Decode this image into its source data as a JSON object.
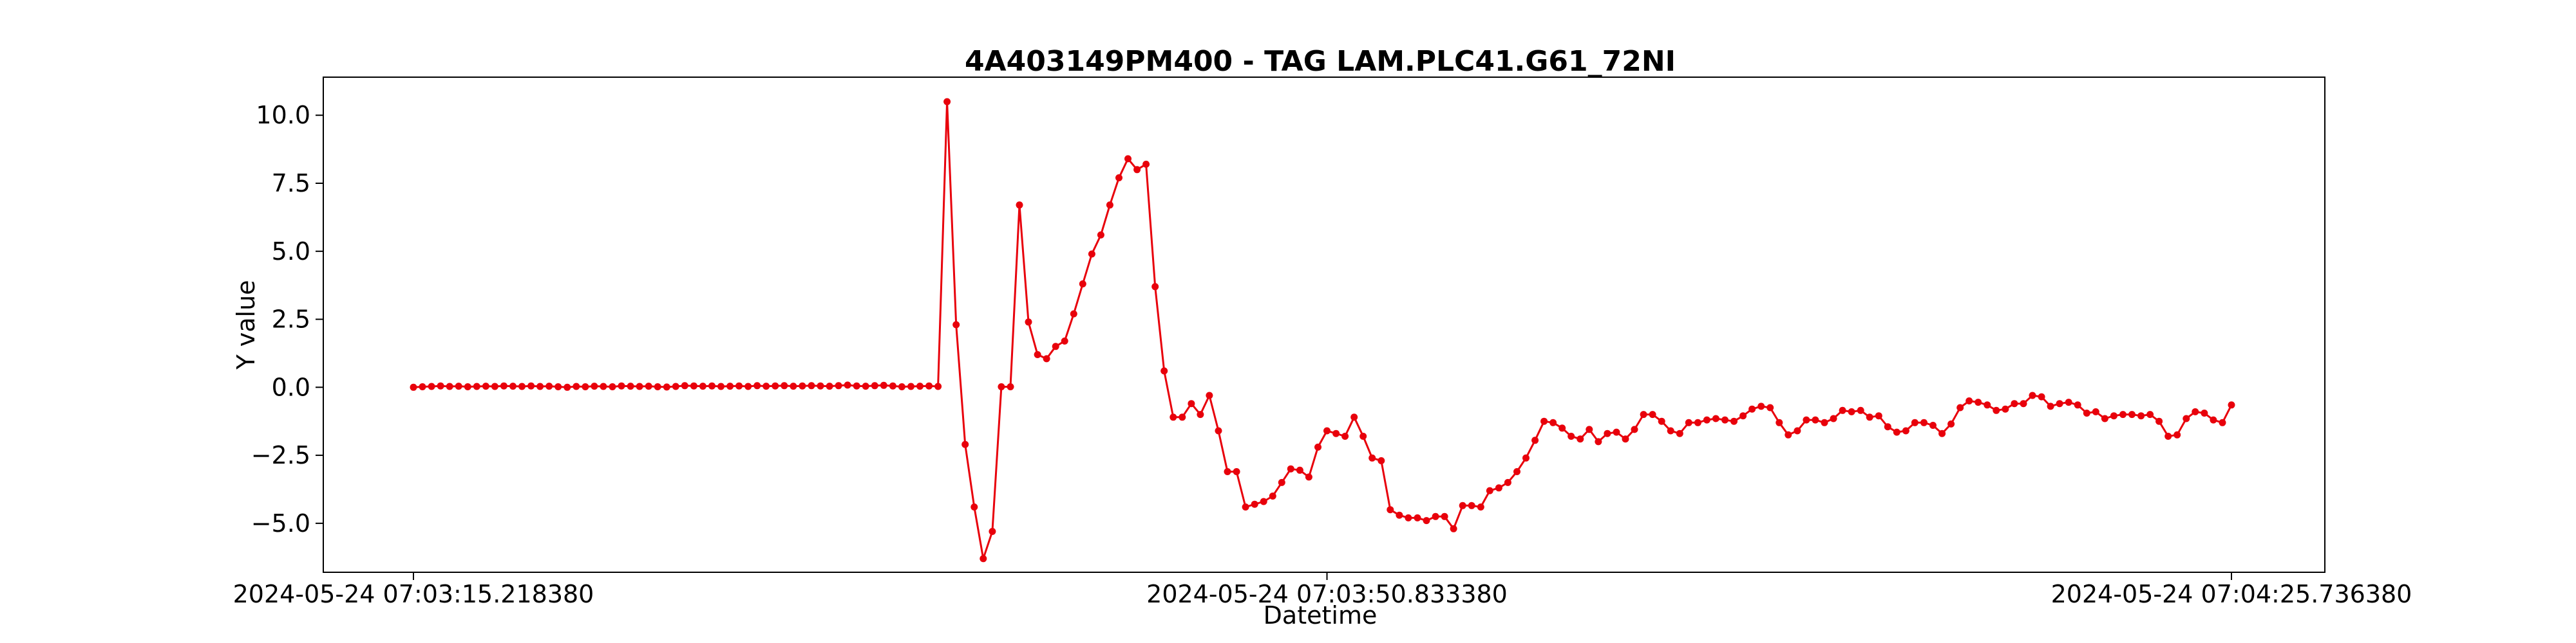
{
  "chart_data": {
    "type": "line",
    "title": "4A403149PM400 - TAG LAM.PLC41.G61_72NI",
    "xlabel": "Datetime",
    "ylabel": "Y value",
    "grid": false,
    "series_color": "#e8000b",
    "x_tick_labels": [
      "2024-05-24 07:03:15.218380",
      "2024-05-24 07:03:50.833380",
      "2024-05-24 07:04:25.736380"
    ],
    "y_ticks": [
      -5.0,
      -2.5,
      0.0,
      2.5,
      5.0,
      7.5,
      10.0
    ],
    "y_tick_labels": [
      "−5.0",
      "−2.5",
      "0.0",
      "2.5",
      "5.0",
      "7.5",
      "10.0"
    ],
    "ylim": [
      -6.8,
      11.4
    ],
    "y": [
      0.0,
      0.02,
      0.03,
      0.05,
      0.03,
      0.04,
      0.02,
      0.03,
      0.04,
      0.03,
      0.05,
      0.04,
      0.03,
      0.05,
      0.03,
      0.04,
      0.02,
      0.0,
      0.03,
      0.02,
      0.04,
      0.03,
      0.02,
      0.05,
      0.04,
      0.03,
      0.04,
      0.02,
      0.01,
      0.03,
      0.06,
      0.05,
      0.04,
      0.05,
      0.03,
      0.04,
      0.05,
      0.03,
      0.06,
      0.04,
      0.05,
      0.06,
      0.04,
      0.05,
      0.06,
      0.05,
      0.04,
      0.06,
      0.08,
      0.05,
      0.04,
      0.06,
      0.07,
      0.05,
      0.02,
      0.03,
      0.04,
      0.05,
      0.03,
      10.5,
      2.3,
      -2.1,
      -4.4,
      -6.3,
      -5.3,
      0.02,
      0.02,
      6.7,
      2.4,
      1.2,
      1.05,
      1.5,
      1.7,
      2.7,
      3.8,
      4.9,
      5.6,
      6.7,
      7.7,
      8.4,
      8.0,
      8.2,
      3.7,
      0.6,
      -1.1,
      -1.1,
      -0.6,
      -1.0,
      -0.3,
      -1.6,
      -3.1,
      -3.1,
      -4.4,
      -4.3,
      -4.2,
      -4.0,
      -3.5,
      -3.0,
      -3.05,
      -3.3,
      -2.2,
      -1.6,
      -1.7,
      -1.8,
      -1.1,
      -1.8,
      -2.6,
      -2.7,
      -4.5,
      -4.7,
      -4.8,
      -4.8,
      -4.9,
      -4.75,
      -4.75,
      -5.2,
      -4.35,
      -4.35,
      -4.4,
      -3.8,
      -3.7,
      -3.5,
      -3.1,
      -2.6,
      -1.95,
      -1.25,
      -1.3,
      -1.5,
      -1.8,
      -1.9,
      -1.55,
      -2.0,
      -1.7,
      -1.65,
      -1.9,
      -1.55,
      -1.0,
      -1.0,
      -1.25,
      -1.6,
      -1.7,
      -1.3,
      -1.3,
      -1.2,
      -1.15,
      -1.2,
      -1.25,
      -1.05,
      -0.8,
      -0.7,
      -0.75,
      -1.3,
      -1.75,
      -1.6,
      -1.2,
      -1.2,
      -1.3,
      -1.15,
      -0.85,
      -0.9,
      -0.85,
      -1.1,
      -1.05,
      -1.45,
      -1.65,
      -1.6,
      -1.3,
      -1.3,
      -1.4,
      -1.7,
      -1.35,
      -0.75,
      -0.5,
      -0.55,
      -0.65,
      -0.85,
      -0.8,
      -0.6,
      -0.6,
      -0.3,
      -0.35,
      -0.7,
      -0.6,
      -0.55,
      -0.65,
      -0.95,
      -0.9,
      -1.15,
      -1.05,
      -1.0,
      -1.0,
      -1.05,
      -1.0,
      -1.25,
      -1.8,
      -1.75,
      -1.15,
      -0.9,
      -0.95,
      -1.2,
      -1.3,
      -0.65
    ]
  }
}
